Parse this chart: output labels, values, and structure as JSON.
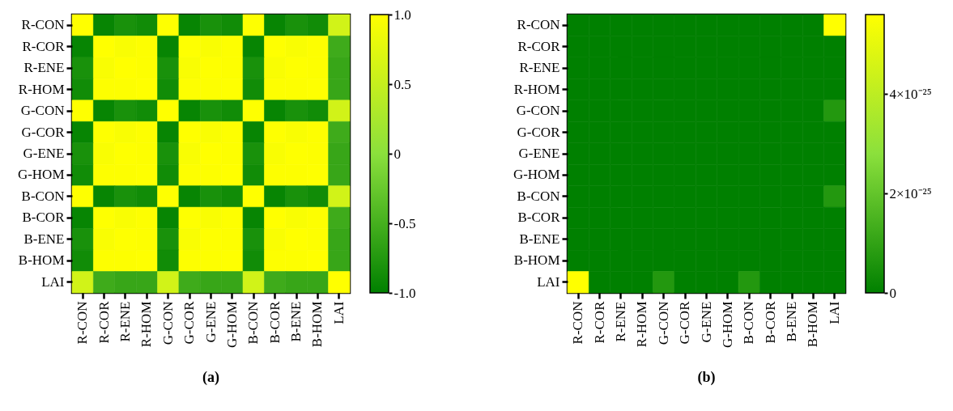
{
  "chart_data": [
    {
      "type": "heatmap",
      "title": "(a)",
      "categories": [
        "R-CON",
        "R-COR",
        "R-ENE",
        "R-HOM",
        "G-CON",
        "G-COR",
        "G-ENE",
        "G-HOM",
        "B-CON",
        "B-COR",
        "B-ENE",
        "B-HOM",
        "LAI"
      ],
      "y_categories": [
        "R-CON",
        "R-COR",
        "R-ENE",
        "R-HOM",
        "G-CON",
        "G-COR",
        "G-ENE",
        "G-HOM",
        "B-CON",
        "B-COR",
        "B-ENE",
        "B-HOM",
        "LAI"
      ],
      "cells": [
        [
          1,
          -0.95,
          -0.82,
          -0.88,
          0.99,
          -0.95,
          -0.82,
          -0.88,
          0.99,
          -0.95,
          -0.82,
          -0.88,
          0.6
        ],
        [
          -0.95,
          1,
          0.95,
          0.98,
          -0.95,
          0.99,
          0.95,
          0.98,
          -0.95,
          0.99,
          0.95,
          0.98,
          -0.55
        ],
        [
          -0.82,
          0.95,
          1,
          0.98,
          -0.82,
          0.95,
          0.99,
          0.98,
          -0.82,
          0.95,
          0.99,
          0.98,
          -0.6
        ],
        [
          -0.88,
          0.98,
          0.98,
          1,
          -0.88,
          0.98,
          0.98,
          0.99,
          -0.88,
          0.98,
          0.98,
          0.99,
          -0.6
        ],
        [
          0.99,
          -0.95,
          -0.82,
          -0.88,
          1,
          -0.95,
          -0.82,
          -0.88,
          0.99,
          -0.95,
          -0.82,
          -0.88,
          0.6
        ],
        [
          -0.95,
          0.99,
          0.95,
          0.98,
          -0.95,
          1,
          0.95,
          0.98,
          -0.95,
          0.99,
          0.95,
          0.98,
          -0.55
        ],
        [
          -0.82,
          0.95,
          0.99,
          0.98,
          -0.82,
          0.95,
          1,
          0.98,
          -0.82,
          0.95,
          0.99,
          0.98,
          -0.6
        ],
        [
          -0.88,
          0.98,
          0.98,
          0.99,
          -0.88,
          0.98,
          0.98,
          1,
          -0.88,
          0.98,
          0.98,
          0.99,
          -0.6
        ],
        [
          0.99,
          -0.95,
          -0.82,
          -0.88,
          0.99,
          -0.95,
          -0.82,
          -0.88,
          1,
          -0.95,
          -0.82,
          -0.88,
          0.6
        ],
        [
          -0.95,
          0.99,
          0.95,
          0.98,
          -0.95,
          0.99,
          0.95,
          0.98,
          -0.95,
          1,
          0.95,
          0.98,
          -0.55
        ],
        [
          -0.82,
          0.95,
          0.99,
          0.98,
          -0.82,
          0.95,
          0.99,
          0.98,
          -0.82,
          0.95,
          1,
          0.98,
          -0.6
        ],
        [
          -0.88,
          0.98,
          0.98,
          0.99,
          -0.88,
          0.98,
          0.98,
          0.99,
          -0.88,
          0.98,
          0.98,
          1,
          -0.6
        ],
        [
          0.6,
          -0.55,
          -0.6,
          -0.6,
          0.6,
          -0.55,
          -0.6,
          -0.6,
          0.6,
          -0.55,
          -0.6,
          -0.6,
          1
        ]
      ],
      "clim": [
        -1,
        1
      ],
      "cticks": [
        {
          "value": 1,
          "label": "1.0"
        },
        0.5,
        0,
        -0.5,
        {
          "value": -1,
          "label": "-1.0"
        }
      ]
    },
    {
      "type": "heatmap",
      "title": "(b)",
      "categories": [
        "R-CON",
        "R-COR",
        "R-ENE",
        "R-HOM",
        "G-CON",
        "G-COR",
        "G-ENE",
        "G-HOM",
        "B-CON",
        "B-COR",
        "B-ENE",
        "B-HOM",
        "LAI"
      ],
      "y_categories": [
        "R-CON",
        "R-COR",
        "R-ENE",
        "R-HOM",
        "G-CON",
        "G-COR",
        "G-ENE",
        "G-HOM",
        "B-CON",
        "B-COR",
        "B-ENE",
        "B-HOM",
        "LAI"
      ],
      "cells": [
        [
          0,
          0,
          0,
          0,
          0,
          0,
          0,
          0,
          0,
          0,
          0,
          0,
          5.6e-25
        ],
        [
          0,
          0,
          0,
          0,
          0,
          0,
          0,
          0,
          0,
          0,
          0,
          0,
          0
        ],
        [
          0,
          0,
          0,
          0,
          0,
          0,
          0,
          0,
          0,
          0,
          0,
          0,
          0
        ],
        [
          0,
          0,
          0,
          0,
          0,
          0,
          0,
          0,
          0,
          0,
          0,
          0,
          0
        ],
        [
          0,
          0,
          0,
          0,
          0,
          0,
          0,
          0,
          0,
          0,
          0,
          0,
          7e-26
        ],
        [
          0,
          0,
          0,
          0,
          0,
          0,
          0,
          0,
          0,
          0,
          0,
          0,
          0
        ],
        [
          0,
          0,
          0,
          0,
          0,
          0,
          0,
          0,
          0,
          0,
          0,
          0,
          0
        ],
        [
          0,
          0,
          0,
          0,
          0,
          0,
          0,
          0,
          0,
          0,
          0,
          0,
          0
        ],
        [
          0,
          0,
          0,
          0,
          0,
          0,
          0,
          0,
          0,
          0,
          0,
          0,
          7e-26
        ],
        [
          0,
          0,
          0,
          0,
          0,
          0,
          0,
          0,
          0,
          0,
          0,
          0,
          0
        ],
        [
          0,
          0,
          0,
          0,
          0,
          0,
          0,
          0,
          0,
          0,
          0,
          0,
          0
        ],
        [
          0,
          0,
          0,
          0,
          0,
          0,
          0,
          0,
          0,
          0,
          0,
          0,
          0
        ],
        [
          5.6e-25,
          0,
          0,
          0,
          7e-26,
          0,
          0,
          0,
          7e-26,
          0,
          0,
          0,
          0
        ]
      ],
      "clim": [
        0,
        5.6e-25
      ],
      "cticks": [
        {
          "value": 4e-25,
          "label": "4×10⁻²⁵"
        },
        {
          "value": 2e-25,
          "label": "2×10⁻²⁵"
        },
        0
      ]
    }
  ]
}
